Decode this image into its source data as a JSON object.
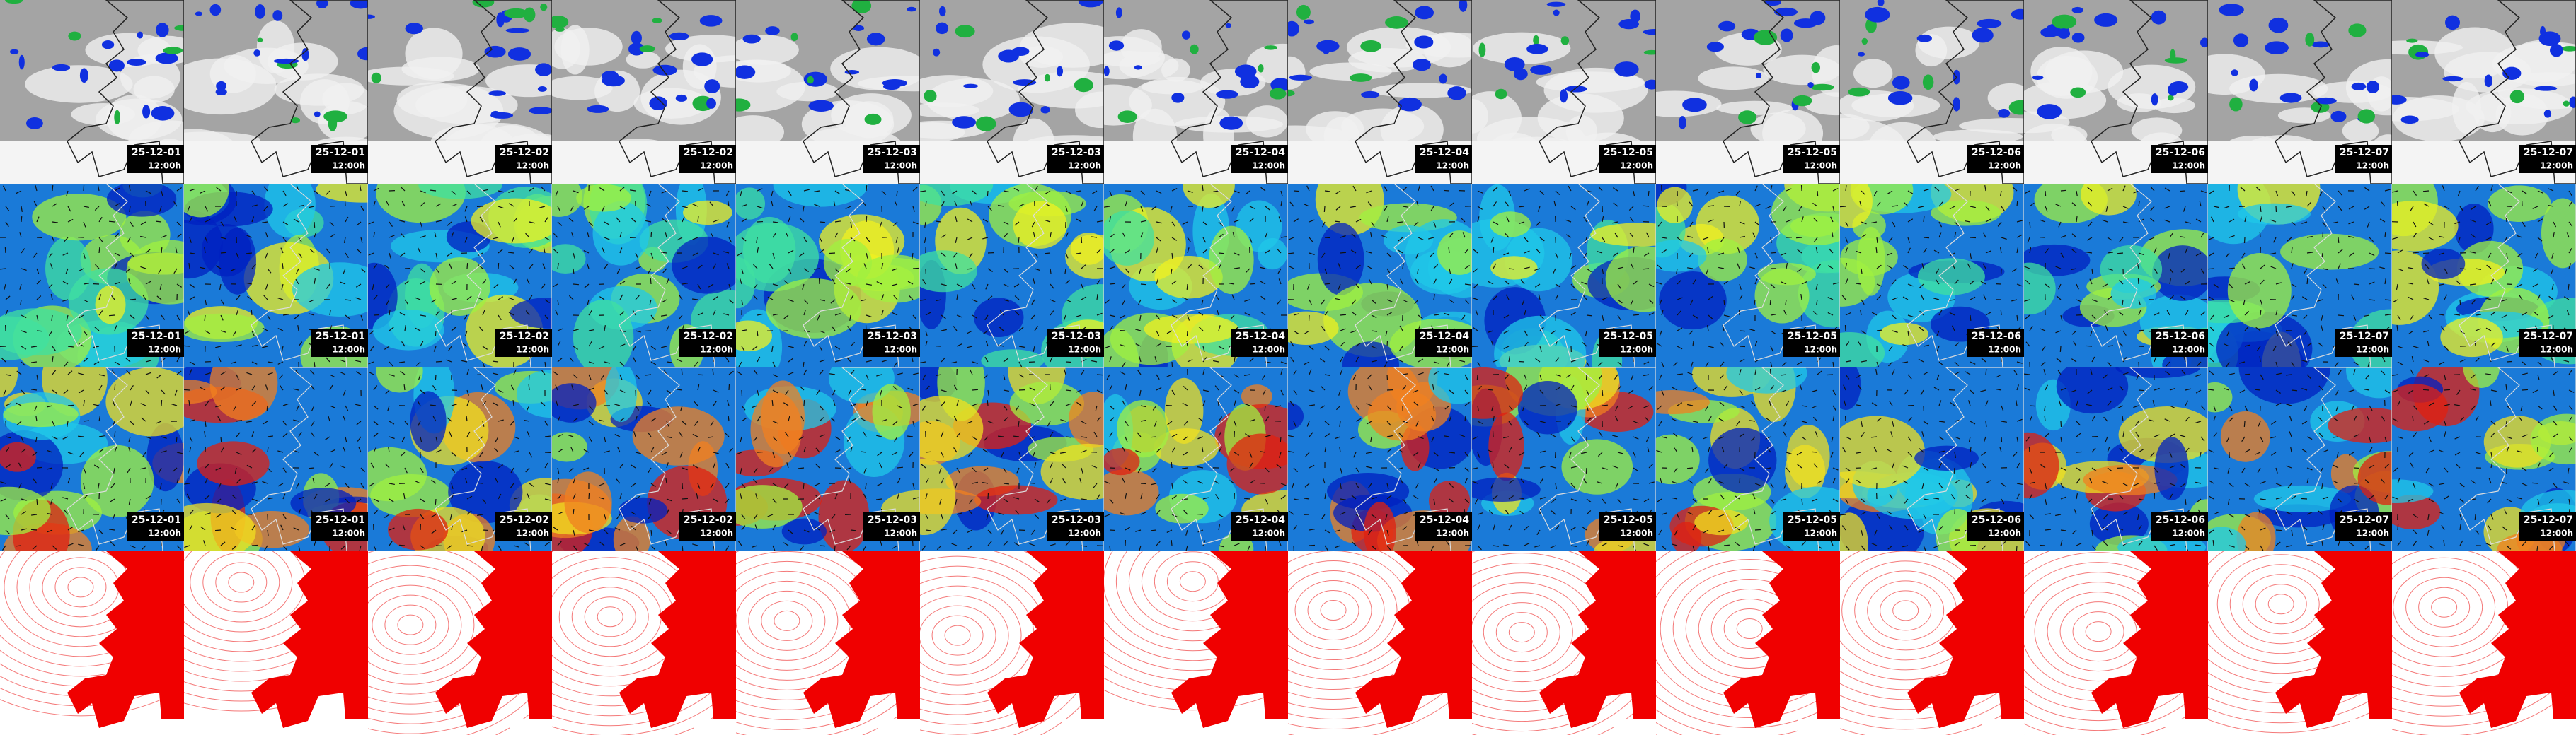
{
  "panel_rows": [
    {
      "cells": [
        {
          "date": "25-12-01",
          "time": "12:00h"
        },
        {
          "date": "25-12-01",
          "time": "12:00h"
        },
        {
          "date": "25-12-02",
          "time": "12:00h"
        },
        {
          "date": "25-12-02",
          "time": "12:00h"
        },
        {
          "date": "25-12-03",
          "time": "12:00h"
        },
        {
          "date": "25-12-03",
          "time": "12:00h"
        },
        {
          "date": "25-12-04",
          "time": "12:00h"
        },
        {
          "date": "25-12-04",
          "time": "12:00h"
        },
        {
          "date": "25-12-05",
          "time": "12:00h"
        },
        {
          "date": "25-12-05",
          "time": "12:00h"
        },
        {
          "date": "25-12-06",
          "time": "12:00h"
        },
        {
          "date": "25-12-06",
          "time": "12:00h"
        },
        {
          "date": "25-12-07",
          "time": "12:00h"
        },
        {
          "date": "25-12-07",
          "time": "12:00h"
        }
      ]
    },
    {
      "cells": [
        {
          "date": "25-12-01",
          "time": "12:00h"
        },
        {
          "date": "25-12-01",
          "time": "12:00h"
        },
        {
          "date": "25-12-02",
          "time": "12:00h"
        },
        {
          "date": "25-12-02",
          "time": "12:00h"
        },
        {
          "date": "25-12-03",
          "time": "12:00h"
        },
        {
          "date": "25-12-03",
          "time": "12:00h"
        },
        {
          "date": "25-12-04",
          "time": "12:00h"
        },
        {
          "date": "25-12-04",
          "time": "12:00h"
        },
        {
          "date": "25-12-05",
          "time": "12:00h"
        },
        {
          "date": "25-12-05",
          "time": "12:00h"
        },
        {
          "date": "25-12-06",
          "time": "12:00h"
        },
        {
          "date": "25-12-06",
          "time": "12:00h"
        },
        {
          "date": "25-12-07",
          "time": "12:00h"
        },
        {
          "date": "25-12-07",
          "time": "12:00h"
        }
      ]
    },
    {
      "cells": [
        {
          "date": "25-12-01",
          "time": "12:00h"
        },
        {
          "date": "25-12-01",
          "time": "12:00h"
        },
        {
          "date": "25-12-02",
          "time": "12:00h"
        },
        {
          "date": "25-12-02",
          "time": "12:00h"
        },
        {
          "date": "25-12-03",
          "time": "12:00h"
        },
        {
          "date": "25-12-03",
          "time": "12:00h"
        },
        {
          "date": "25-12-04",
          "time": "12:00h"
        },
        {
          "date": "25-12-04",
          "time": "12:00h"
        },
        {
          "date": "25-12-05",
          "time": "12:00h"
        },
        {
          "date": "25-12-05",
          "time": "12:00h"
        },
        {
          "date": "25-12-06",
          "time": "12:00h"
        },
        {
          "date": "25-12-06",
          "time": "12:00h"
        },
        {
          "date": "25-12-07",
          "time": "12:00h"
        },
        {
          "date": "25-12-07",
          "time": "12:00h"
        }
      ]
    }
  ]
}
